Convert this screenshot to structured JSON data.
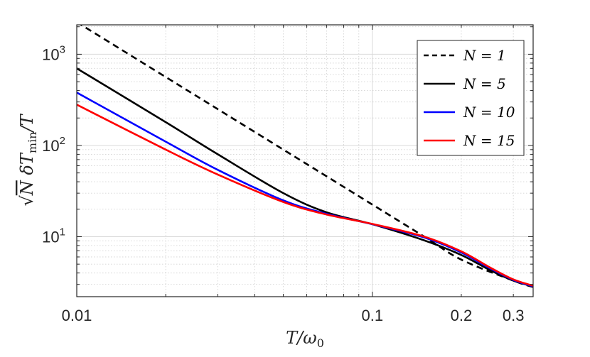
{
  "chart_data": {
    "type": "line",
    "xscale": "log",
    "yscale": "log",
    "xlim": [
      0.01,
      0.35
    ],
    "ylim": [
      2.2,
      2100
    ],
    "xticks": [
      {
        "value": 0.01,
        "label": "0.01"
      },
      {
        "value": 0.1,
        "label": "0.1"
      },
      {
        "value": 0.2,
        "label": "0.2"
      },
      {
        "value": 0.3,
        "label": "0.3"
      }
    ],
    "yticks": [
      {
        "value": 10,
        "base": "10",
        "exp": "1"
      },
      {
        "value": 100,
        "base": "10",
        "exp": "2"
      },
      {
        "value": 1000,
        "base": "10",
        "exp": "3"
      }
    ],
    "xlabel": "T/ω₀",
    "ylabel": "√N δT_min/T",
    "grid": true,
    "legend_position": "top-right",
    "series": [
      {
        "name": "N = 1",
        "color": "#000000",
        "dash": "dashed",
        "x": [
          0.01,
          0.03,
          0.1,
          0.15,
          0.2,
          0.3,
          0.35
        ],
        "y": [
          2250,
          250,
          22.5,
          10.0,
          5.6,
          3.3,
          2.8
        ]
      },
      {
        "name": "N = 5",
        "color": "#000000",
        "dash": "solid",
        "x": [
          0.01,
          0.02,
          0.03,
          0.05,
          0.07,
          0.1,
          0.15,
          0.2,
          0.25,
          0.3,
          0.35
        ],
        "y": [
          700,
          180,
          80,
          30,
          18.5,
          13.7,
          9.1,
          6.3,
          4.3,
          3.3,
          2.85
        ]
      },
      {
        "name": "N = 10",
        "color": "#0000ff",
        "dash": "solid",
        "x": [
          0.01,
          0.02,
          0.03,
          0.05,
          0.07,
          0.1,
          0.15,
          0.2,
          0.25,
          0.3,
          0.35
        ],
        "y": [
          380,
          110,
          54,
          25,
          17.8,
          13.7,
          9.8,
          6.7,
          4.5,
          3.35,
          2.85
        ]
      },
      {
        "name": "N = 15",
        "color": "#ff0000",
        "dash": "solid",
        "x": [
          0.01,
          0.02,
          0.03,
          0.05,
          0.07,
          0.1,
          0.15,
          0.2,
          0.25,
          0.3,
          0.35
        ],
        "y": [
          280,
          90,
          48,
          24,
          17.5,
          13.8,
          10.0,
          6.9,
          4.6,
          3.4,
          2.9
        ]
      }
    ]
  }
}
